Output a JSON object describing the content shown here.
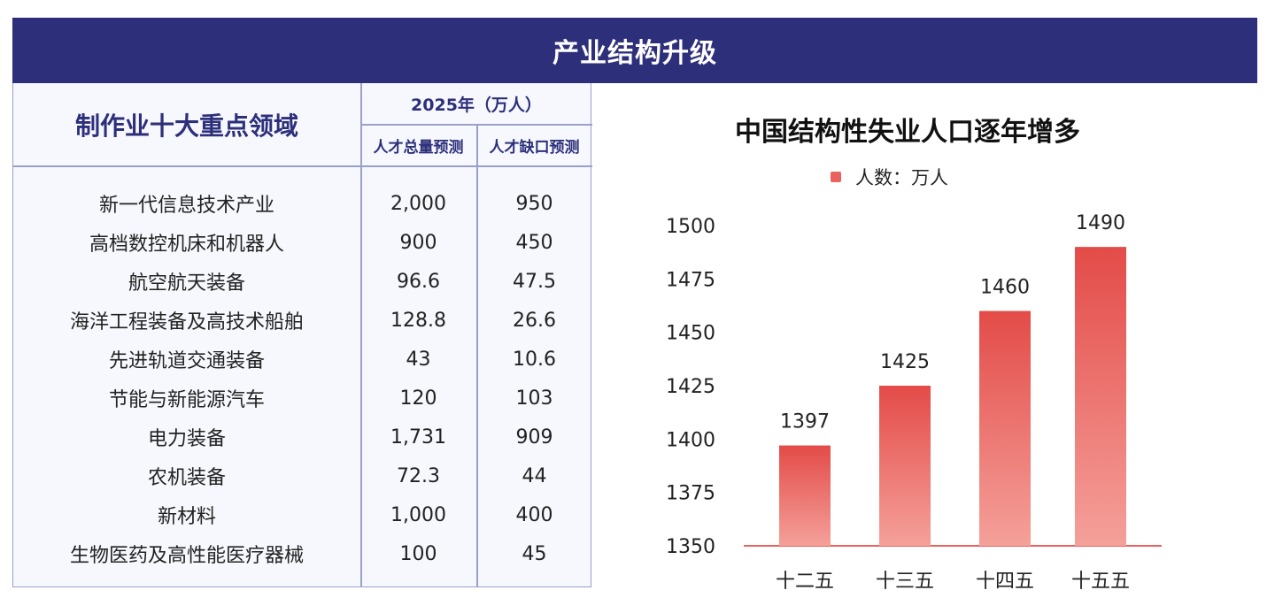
{
  "banner": {
    "title": "产业结构升级"
  },
  "table": {
    "header_main": "制作业十大重点领域",
    "header_year": "2025年（万人）",
    "header_cols": [
      "人才总量预测",
      "人才缺口预测"
    ],
    "rows": [
      [
        "新一代信息技术产业",
        "2,000",
        "950"
      ],
      [
        "高档数控机床和机器人",
        "900",
        "450"
      ],
      [
        "航空航天装备",
        "96.6",
        "47.5"
      ],
      [
        "海洋工程装备及高技术船舶",
        "128.8",
        "26.6"
      ],
      [
        "先进轨道交通装备",
        "43",
        "10.6"
      ],
      [
        "节能与新能源汽车",
        "120",
        "103"
      ],
      [
        "电力装备",
        "1,731",
        "909"
      ],
      [
        "农机装备",
        "72.3",
        "44"
      ],
      [
        "新材料",
        "1,000",
        "400"
      ],
      [
        "生物医药及高性能医疗器械",
        "100",
        "45"
      ]
    ]
  },
  "colors": {
    "banner": "#2e2f7b",
    "bar_top": "#e34b48",
    "bar_bottom": "#f5a09a",
    "axis": "#e8625f"
  },
  "chart_data": {
    "type": "bar",
    "title": "中国结构性失业人口逐年增多",
    "legend": "人数：万人",
    "legend_position": "top",
    "categories": [
      "十二五",
      "十三五",
      "十四五",
      "十五五"
    ],
    "series": [
      {
        "name": "人数：万人",
        "values": [
          1397,
          1425,
          1460,
          1490
        ]
      }
    ],
    "ylim": [
      1350,
      1500
    ],
    "yticks": [
      1350,
      1375,
      1400,
      1425,
      1450,
      1475,
      1500
    ],
    "grid": false,
    "data_labels": true
  }
}
